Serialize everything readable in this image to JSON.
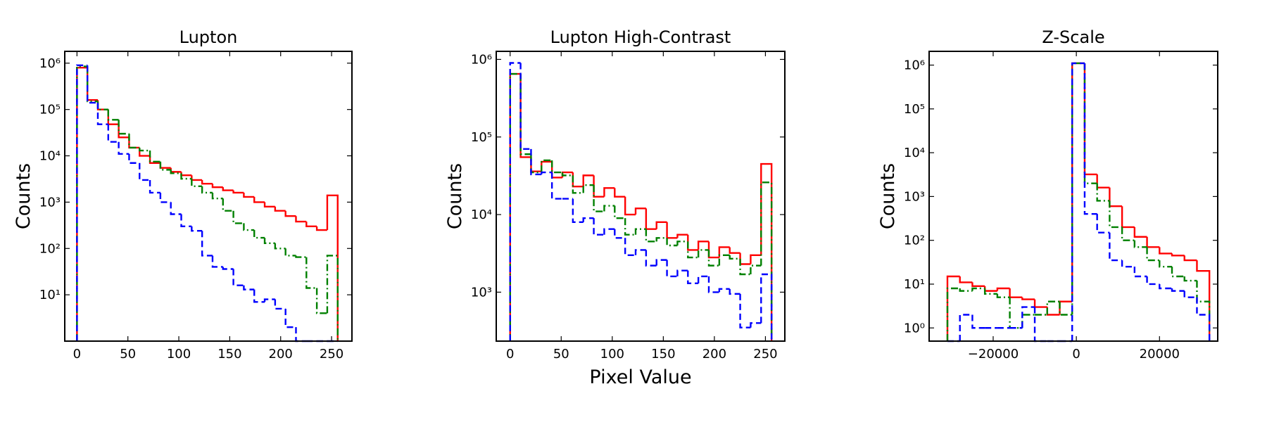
{
  "chart_data": [
    {
      "type": "histogram",
      "title": "Lupton",
      "ylabel": "Counts",
      "yscale": "log",
      "bins": [
        0,
        10.24,
        20.48,
        30.72,
        40.96,
        51.2,
        61.44,
        71.68,
        81.92,
        92.16,
        102.4,
        112.64,
        122.88,
        133.12,
        143.36,
        153.6,
        163.84,
        174.08,
        184.32,
        194.56,
        204.8,
        215.04,
        225.28,
        235.52,
        245.76,
        256
      ],
      "xlim": [
        -12,
        270
      ],
      "ylim": [
        1,
        1800000
      ],
      "xticks": [
        0,
        50,
        100,
        150,
        200,
        250
      ],
      "yticks": [
        {
          "value": 10,
          "label": "10¹"
        },
        {
          "value": 100,
          "label": "10²"
        },
        {
          "value": 1000,
          "label": "10³"
        },
        {
          "value": 10000,
          "label": "10⁴"
        },
        {
          "value": 100000,
          "label": "10⁵"
        },
        {
          "value": 1000000,
          "label": "10⁶"
        }
      ],
      "series": [
        {
          "color": "#ff0000",
          "linestyle": "solid",
          "values": [
            800000,
            160000,
            100000,
            48000,
            25000,
            15000,
            10000,
            7000,
            5500,
            4500,
            3800,
            3000,
            2500,
            2100,
            1800,
            1600,
            1300,
            1000,
            800,
            650,
            500,
            380,
            300,
            250,
            1400
          ]
        },
        {
          "color": "#008000",
          "linestyle": "dashdot",
          "values": [
            850000,
            150000,
            100000,
            60000,
            30000,
            15000,
            13000,
            7500,
            5000,
            4200,
            3200,
            2200,
            1600,
            1200,
            650,
            350,
            250,
            170,
            130,
            100,
            70,
            65,
            14,
            4,
            70
          ]
        },
        {
          "color": "#0000ff",
          "linestyle": "dashed",
          "values": [
            900000,
            140000,
            48000,
            20000,
            11000,
            7000,
            3000,
            1600,
            1000,
            550,
            300,
            240,
            70,
            40,
            36,
            16,
            13,
            7,
            8,
            5,
            2,
            0,
            0,
            0,
            0
          ]
        }
      ]
    },
    {
      "type": "histogram",
      "title": "Lupton High-Contrast",
      "xlabel": "Pixel Value",
      "ylabel": "Counts",
      "yscale": "log",
      "bins": [
        0,
        10.24,
        20.48,
        30.72,
        40.96,
        51.2,
        61.44,
        71.68,
        81.92,
        92.16,
        102.4,
        112.64,
        122.88,
        133.12,
        143.36,
        153.6,
        163.84,
        174.08,
        184.32,
        194.56,
        204.8,
        215.04,
        225.28,
        235.52,
        245.76,
        256
      ],
      "xlim": [
        -13.6,
        269
      ],
      "ylim": [
        234,
        1270000
      ],
      "xticks": [
        0,
        50,
        100,
        150,
        200,
        250
      ],
      "yticks": [
        {
          "value": 1000,
          "label": "10³"
        },
        {
          "value": 10000,
          "label": "10⁴"
        },
        {
          "value": 100000,
          "label": "10⁵"
        },
        {
          "value": 1000000,
          "label": "10⁶"
        }
      ],
      "series": [
        {
          "color": "#ff0000",
          "linestyle": "solid",
          "values": [
            650000,
            55000,
            36000,
            48000,
            30000,
            35000,
            23000,
            32000,
            17000,
            22000,
            17000,
            10000,
            12000,
            6500,
            8000,
            5000,
            5500,
            3500,
            4500,
            2800,
            3800,
            3200,
            2300,
            3000,
            45000
          ]
        },
        {
          "color": "#008000",
          "linestyle": "dashdot",
          "values": [
            650000,
            60000,
            35000,
            50000,
            35000,
            32000,
            19000,
            24000,
            11000,
            13000,
            9000,
            5500,
            6500,
            4500,
            5000,
            4000,
            4500,
            2800,
            3500,
            2200,
            3000,
            2700,
            1700,
            2200,
            26000
          ]
        },
        {
          "color": "#0000ff",
          "linestyle": "dashed",
          "values": [
            900000,
            70000,
            33000,
            35000,
            16000,
            16000,
            8000,
            9000,
            5500,
            6500,
            5000,
            3000,
            3500,
            2200,
            2600,
            1600,
            1900,
            1300,
            1600,
            1000,
            1100,
            950,
            350,
            400,
            1700
          ]
        }
      ]
    },
    {
      "type": "histogram",
      "title": "Z-Scale",
      "ylabel": "Counts",
      "yscale": "log",
      "bins": [
        -31000,
        -28000,
        -25000,
        -22000,
        -19000,
        -16000,
        -13000,
        -10000,
        -7000,
        -4000,
        -1000,
        2000,
        5000,
        8000,
        11000,
        14000,
        17000,
        20000,
        23000,
        26000,
        29000,
        32000
      ],
      "xlim": [
        -35400,
        34000
      ],
      "ylim": [
        0.5,
        2060000
      ],
      "xticks": [
        {
          "value": -20000,
          "label": "−20000"
        },
        0,
        20000
      ],
      "yticks": [
        {
          "value": 1,
          "label": "10⁰"
        },
        {
          "value": 10,
          "label": "10¹"
        },
        {
          "value": 100,
          "label": "10²"
        },
        {
          "value": 1000,
          "label": "10³"
        },
        {
          "value": 10000,
          "label": "10⁴"
        },
        {
          "value": 100000,
          "label": "10⁵"
        },
        {
          "value": 1000000,
          "label": "10⁶"
        }
      ],
      "series": [
        {
          "color": "#ff0000",
          "linestyle": "solid",
          "values": [
            15,
            11,
            9,
            7,
            8,
            5,
            4.5,
            3,
            2,
            4,
            1100000,
            3200,
            1600,
            600,
            200,
            120,
            70,
            50,
            45,
            35,
            20
          ]
        },
        {
          "color": "#008000",
          "linestyle": "dashdot",
          "values": [
            8,
            7,
            8,
            6,
            5,
            1,
            2,
            2,
            4,
            2,
            1100000,
            2000,
            800,
            200,
            100,
            70,
            35,
            25,
            15,
            12,
            4
          ]
        },
        {
          "color": "#0000ff",
          "linestyle": "dashed",
          "values": [
            0,
            2,
            1,
            1,
            1,
            1,
            3,
            0,
            0,
            0,
            1100000,
            400,
            150,
            35,
            25,
            15,
            10,
            8,
            7,
            5,
            2
          ]
        }
      ]
    }
  ]
}
